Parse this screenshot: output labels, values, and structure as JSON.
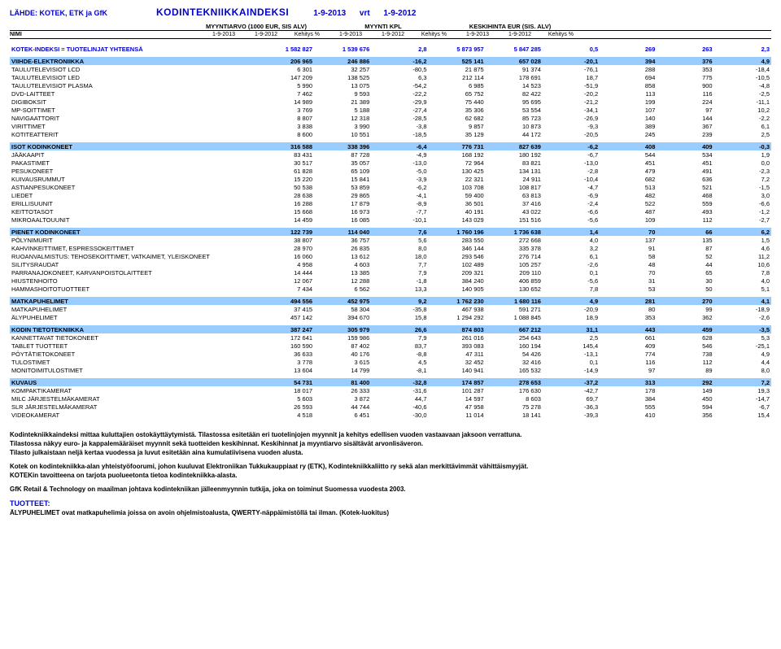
{
  "header": {
    "source": "LÄHDE: KOTEK, ETK ja GfK",
    "title": "KODINTEKNIIKKAINDEKSI",
    "period1": "1-9-2013",
    "vrt": "vrt",
    "period2": "1-9-2012",
    "nimi": "NIMI",
    "group1": "MYYNTIARVO (1000 EUR, SIS ALV)",
    "group2": "MYYNTI KPL",
    "group3": "KESKIHINTA EUR (SIS. ALV)",
    "c1": "1-9-2013",
    "c2": "1-9-2012",
    "c3": "Kehitys %",
    "c4": "1-9-2013",
    "c5": "1-9-2012",
    "c6": "Kehitys %",
    "c7": "1-9-2013",
    "c8": "1-9-2012",
    "c9": "Kehitys %"
  },
  "totalRow": {
    "name": "KOTEK-INDEKSI = TUOTELINJAT YHTEENSÄ",
    "v": [
      "1 582 827",
      "1 539 676",
      "2,8",
      "5 873 957",
      "5 847 285",
      "0,5",
      "269",
      "263",
      "2,3"
    ]
  },
  "sections": [
    {
      "header": {
        "name": "VIIHDE-ELEKTRONIIKKA",
        "v": [
          "206 965",
          "246 886",
          "-16,2",
          "525 141",
          "657 028",
          "-20,1",
          "394",
          "376",
          "4,9"
        ]
      },
      "rows": [
        {
          "name": "TAULUTELEVISIOT LCD",
          "v": [
            "6 301",
            "32 257",
            "-80,5",
            "21 875",
            "91 374",
            "-76,1",
            "288",
            "353",
            "-18,4"
          ]
        },
        {
          "name": "TAULUTELEVISIOT LED",
          "v": [
            "147 209",
            "138 525",
            "6,3",
            "212 114",
            "178 691",
            "18,7",
            "694",
            "775",
            "-10,5"
          ]
        },
        {
          "name": "TAULUTELEVISIOT PLASMA",
          "v": [
            "5 990",
            "13 075",
            "-54,2",
            "6 985",
            "14 523",
            "-51,9",
            "858",
            "900",
            "-4,8"
          ]
        },
        {
          "name": "DVD-LAITTEET",
          "v": [
            "7 462",
            "9 593",
            "-22,2",
            "65 752",
            "82 422",
            "-20,2",
            "113",
            "116",
            "-2,5"
          ]
        },
        {
          "name": "DIGIBOKSIT",
          "v": [
            "14 989",
            "21 389",
            "-29,9",
            "75 440",
            "95 695",
            "-21,2",
            "199",
            "224",
            "-11,1"
          ]
        },
        {
          "name": "MP-SOITTIMET",
          "v": [
            "3 769",
            "5 188",
            "-27,4",
            "35 306",
            "53 554",
            "-34,1",
            "107",
            "97",
            "10,2"
          ]
        },
        {
          "name": "NAVIGAATTORIT",
          "v": [
            "8 807",
            "12 318",
            "-28,5",
            "62 682",
            "85 723",
            "-26,9",
            "140",
            "144",
            "-2,2"
          ]
        },
        {
          "name": "VIRITTIMET",
          "v": [
            "3 838",
            "3 990",
            "-3,8",
            "9 857",
            "10 873",
            "-9,3",
            "389",
            "367",
            "6,1"
          ]
        },
        {
          "name": "KOTITEATTERIT",
          "v": [
            "8 600",
            "10 551",
            "-18,5",
            "35 129",
            "44 172",
            "-20,5",
            "245",
            "239",
            "2,5"
          ]
        }
      ]
    },
    {
      "header": {
        "name": "ISOT KODINKONEET",
        "v": [
          "316 588",
          "338 396",
          "-6,4",
          "776 731",
          "827 639",
          "-6,2",
          "408",
          "409",
          "-0,3"
        ]
      },
      "rows": [
        {
          "name": "JÄÄKAAPIT",
          "v": [
            "83 431",
            "87 728",
            "-4,9",
            "168 192",
            "180 192",
            "-6,7",
            "544",
            "534",
            "1,9"
          ]
        },
        {
          "name": "PAKASTIMET",
          "v": [
            "30 517",
            "35 057",
            "-13,0",
            "72 964",
            "83 821",
            "-13,0",
            "451",
            "451",
            "0,0"
          ]
        },
        {
          "name": "PESUKONEET",
          "v": [
            "61 828",
            "65 109",
            "-5,0",
            "130 425",
            "134 131",
            "-2,8",
            "479",
            "491",
            "-2,3"
          ]
        },
        {
          "name": "KUIVAUSRUMMUT",
          "v": [
            "15 220",
            "15 841",
            "-3,9",
            "22 321",
            "24 911",
            "-10,4",
            "682",
            "636",
            "7,2"
          ]
        },
        {
          "name": "ASTIANPESUKONEET",
          "v": [
            "50 538",
            "53 859",
            "-6,2",
            "103 708",
            "108 817",
            "-4,7",
            "513",
            "521",
            "-1,5"
          ]
        },
        {
          "name": "LIEDET",
          "v": [
            "28 638",
            "29 865",
            "-4,1",
            "59 400",
            "63 813",
            "-6,9",
            "482",
            "468",
            "3,0"
          ]
        },
        {
          "name": "ERILLISUUNIT",
          "v": [
            "16 288",
            "17 879",
            "-8,9",
            "36 501",
            "37 416",
            "-2,4",
            "522",
            "559",
            "-6,6"
          ]
        },
        {
          "name": "KEITTOTASOT",
          "v": [
            "15 668",
            "16 973",
            "-7,7",
            "40 191",
            "43 022",
            "-6,6",
            "487",
            "493",
            "-1,2"
          ]
        },
        {
          "name": "MIKROAALTOUUNIT",
          "v": [
            "14 459",
            "16 085",
            "-10,1",
            "143 029",
            "151 516",
            "-5,6",
            "109",
            "112",
            "-2,7"
          ]
        }
      ]
    },
    {
      "header": {
        "name": "PIENET KODINKONEET",
        "v": [
          "122 739",
          "114 040",
          "7,6",
          "1 760 196",
          "1 736 638",
          "1,4",
          "70",
          "66",
          "6,2"
        ]
      },
      "rows": [
        {
          "name": "PÖLYNIMURIT",
          "v": [
            "38 807",
            "36 757",
            "5,6",
            "283 550",
            "272 668",
            "4,0",
            "137",
            "135",
            "1,5"
          ]
        },
        {
          "name": "KAHVINKEITTIMET, ESPRESSOKEITTIMET",
          "v": [
            "28 970",
            "26 835",
            "8,0",
            "346 144",
            "335 378",
            "3,2",
            "91",
            "87",
            "4,6"
          ]
        },
        {
          "name": "RUOANVALMISTUS: TEHOSEKOITTIMET, VATKAIMET, YLEISKONEET",
          "v": [
            "16 060",
            "13 612",
            "18,0",
            "293 546",
            "276 714",
            "6,1",
            "58",
            "52",
            "11,2"
          ]
        },
        {
          "name": "SILITYSRAUDAT",
          "v": [
            "4 958",
            "4 603",
            "7,7",
            "102 489",
            "105 257",
            "-2,6",
            "48",
            "44",
            "10,6"
          ]
        },
        {
          "name": "PARRANAJOKONEET, KARVANPOISTOLAITTEET",
          "v": [
            "14 444",
            "13 385",
            "7,9",
            "209 321",
            "209 110",
            "0,1",
            "70",
            "65",
            "7,8"
          ]
        },
        {
          "name": "HIUSTENHOITO",
          "v": [
            "12 067",
            "12 288",
            "-1,8",
            "384 240",
            "406 859",
            "-5,6",
            "31",
            "30",
            "4,0"
          ]
        },
        {
          "name": "HAMMASHOITOTUOTTEET",
          "v": [
            "7 434",
            "6 562",
            "13,3",
            "140 905",
            "130 652",
            "7,8",
            "53",
            "50",
            "5,1"
          ]
        }
      ]
    },
    {
      "header": {
        "name": "MATKAPUHELIMET",
        "v": [
          "494 556",
          "452 975",
          "9,2",
          "1 762 230",
          "1 680 116",
          "4,9",
          "281",
          "270",
          "4,1"
        ]
      },
      "rows": [
        {
          "name": "MATKAPUHELIMET",
          "v": [
            "37 415",
            "58 304",
            "-35,8",
            "467 938",
            "591 271",
            "-20,9",
            "80",
            "99",
            "-18,9"
          ]
        },
        {
          "name": "ÄLYPUHELIMET",
          "v": [
            "457 142",
            "394 670",
            "15,8",
            "1 294 292",
            "1 088 845",
            "18,9",
            "353",
            "362",
            "-2,6"
          ]
        }
      ]
    },
    {
      "header": {
        "name": "KODIN TIETOTEKNIIKKA",
        "v": [
          "387 247",
          "305 979",
          "26,6",
          "874 803",
          "667 212",
          "31,1",
          "443",
          "459",
          "-3,5"
        ]
      },
      "rows": [
        {
          "name": "KANNETTAVAT TIETOKONEET",
          "v": [
            "172 641",
            "159 986",
            "7,9",
            "261 016",
            "254 643",
            "2,5",
            "661",
            "628",
            "5,3"
          ]
        },
        {
          "name": "TABLET TUOTTEET",
          "v": [
            "160 590",
            "87 402",
            "83,7",
            "393 083",
            "160 194",
            "145,4",
            "409",
            "546",
            "-25,1"
          ]
        },
        {
          "name": "PÖYTÄTIETOKONEET",
          "v": [
            "36 633",
            "40 176",
            "-8,8",
            "47 311",
            "54 426",
            "-13,1",
            "774",
            "738",
            "4,9"
          ]
        },
        {
          "name": "TULOSTIMET",
          "v": [
            "3 778",
            "3 615",
            "4,5",
            "32 452",
            "32 416",
            "0,1",
            "116",
            "112",
            "4,4"
          ]
        },
        {
          "name": "MONITOIMITULOSTIMET",
          "v": [
            "13 604",
            "14 799",
            "-8,1",
            "140 941",
            "165 532",
            "-14,9",
            "97",
            "89",
            "8,0"
          ]
        }
      ]
    },
    {
      "header": {
        "name": "KUVAUS",
        "v": [
          "54 731",
          "81 400",
          "-32,8",
          "174 857",
          "278 653",
          "-37,2",
          "313",
          "292",
          "7,2"
        ]
      },
      "rows": [
        {
          "name": "KOMPAKTIKAMERAT",
          "v": [
            "18 017",
            "26 333",
            "-31,6",
            "101 287",
            "176 630",
            "-42,7",
            "178",
            "149",
            "19,3"
          ]
        },
        {
          "name": "MILC JÄRJESTELMÄKAMERAT",
          "v": [
            "5 603",
            "3 872",
            "44,7",
            "14 597",
            "8 603",
            "69,7",
            "384",
            "450",
            "-14,7"
          ]
        },
        {
          "name": "SLR JÄRJESTELMÄKAMERAT",
          "v": [
            "26 593",
            "44 744",
            "-40,6",
            "47 958",
            "75 278",
            "-36,3",
            "555",
            "594",
            "-6,7"
          ]
        },
        {
          "name": "VIDEOKAMERAT",
          "v": [
            "4 518",
            "6 451",
            "-30,0",
            "11 014",
            "18 141",
            "-39,3",
            "410",
            "356",
            "15,4"
          ]
        }
      ]
    }
  ],
  "footer": {
    "p1": "Kodintekniikkaindeksi mittaa kuluttajien ostokäyttäytymistä. Tilastossa esitetään eri tuotelinjojen myynnit ja kehitys edellisen vuoden vastaavaan jaksoon verrattuna.",
    "p2": "Tilastossa näkyy euro- ja kappalemääräiset myynnit sekä tuotteiden keskihinnat. Keskihinnat ja myyntiarvo sisältävät arvonlisäveron.",
    "p3": "Tilasto julkaistaan neljä kertaa vuodessa ja luvut esitetään aina kumulatiivisena vuoden alusta.",
    "p4": "Kotek on kodintekniikka-alan yhteistyöfoorumi, johon kuuluvat Elektroniikan Tukkukauppiaat ry (ETK), Kodintekniikkaliitto ry sekä alan merkittävimmät vähittäismyyjät.",
    "p5": "KOTEKin tavoitteena on tarjota puolueetonta tietoa kodintekniikka-alasta.",
    "p6": "GfK Retail & Technology on maailman johtava kodintekniikan jälleenmyynnin tutkija, joka on toiminut Suomessa vuodesta 2003.",
    "tuotteetLabel": "TUOTTEET:",
    "p7": "ÄLYPUHELIMET ovat matkapuhelimia joissa on avoin ohjelmistoalusta, QWERTY-näppäimistöllä tai ilman. (Kotek-luokitus)"
  }
}
